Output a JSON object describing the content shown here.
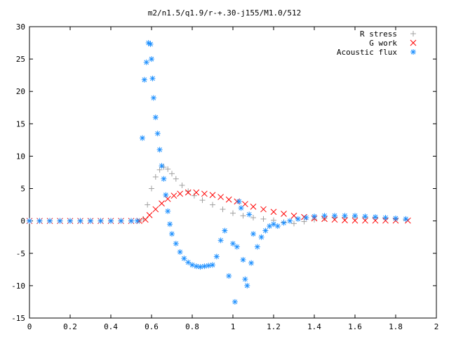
{
  "chart_data": {
    "type": "scatter",
    "title": "m2/n1.5/q1.9/r-+.30-j155/M1.0/512",
    "xlabel": "",
    "ylabel": "",
    "xlim": [
      0,
      2
    ],
    "ylim": [
      -15,
      30
    ],
    "xticks": [
      "0",
      "0.2",
      "0.4",
      "0.6",
      "0.8",
      "1",
      "1.2",
      "1.4",
      "1.6",
      "1.8",
      "2"
    ],
    "yticks": [
      "-15",
      "-10",
      "-5",
      "0",
      "5",
      "10",
      "15",
      "20",
      "25",
      "30"
    ],
    "legend_position": "top-right",
    "series": [
      {
        "name": "R stress",
        "marker": "+",
        "color": "#a0a0a0",
        "points": [
          [
            0.0,
            0
          ],
          [
            0.05,
            0
          ],
          [
            0.1,
            0
          ],
          [
            0.15,
            0
          ],
          [
            0.2,
            0
          ],
          [
            0.25,
            0
          ],
          [
            0.3,
            0
          ],
          [
            0.35,
            0
          ],
          [
            0.4,
            0
          ],
          [
            0.45,
            0
          ],
          [
            0.5,
            0
          ],
          [
            0.54,
            0
          ],
          [
            0.56,
            0.3
          ],
          [
            0.58,
            2.5
          ],
          [
            0.6,
            5.0
          ],
          [
            0.62,
            6.8
          ],
          [
            0.64,
            7.9
          ],
          [
            0.66,
            8.3
          ],
          [
            0.68,
            8.0
          ],
          [
            0.7,
            7.3
          ],
          [
            0.72,
            6.5
          ],
          [
            0.75,
            5.5
          ],
          [
            0.78,
            4.6
          ],
          [
            0.81,
            3.9
          ],
          [
            0.85,
            3.2
          ],
          [
            0.9,
            2.5
          ],
          [
            0.95,
            1.8
          ],
          [
            1.0,
            1.2
          ],
          [
            1.05,
            0.8
          ],
          [
            1.1,
            0.5
          ],
          [
            1.15,
            0.3
          ],
          [
            1.2,
            0.1
          ],
          [
            1.25,
            -0.2
          ],
          [
            1.3,
            -0.4
          ],
          [
            1.35,
            -0.1
          ],
          [
            1.4,
            0.2
          ],
          [
            1.45,
            0.4
          ],
          [
            1.5,
            0.5
          ],
          [
            1.55,
            0.55
          ],
          [
            1.6,
            0.6
          ],
          [
            1.65,
            0.55
          ],
          [
            1.7,
            0.5
          ],
          [
            1.75,
            0.4
          ],
          [
            1.8,
            0.3
          ],
          [
            1.85,
            0.15
          ]
        ]
      },
      {
        "name": "G work",
        "marker": "x",
        "color": "#ff0000",
        "points": [
          [
            0.0,
            0
          ],
          [
            0.05,
            0
          ],
          [
            0.1,
            0
          ],
          [
            0.15,
            0
          ],
          [
            0.2,
            0
          ],
          [
            0.25,
            0
          ],
          [
            0.3,
            0
          ],
          [
            0.35,
            0
          ],
          [
            0.4,
            0
          ],
          [
            0.45,
            0
          ],
          [
            0.5,
            0
          ],
          [
            0.54,
            0
          ],
          [
            0.57,
            0.2
          ],
          [
            0.59,
            0.9
          ],
          [
            0.62,
            1.8
          ],
          [
            0.65,
            2.7
          ],
          [
            0.68,
            3.4
          ],
          [
            0.71,
            3.9
          ],
          [
            0.74,
            4.2
          ],
          [
            0.78,
            4.4
          ],
          [
            0.82,
            4.4
          ],
          [
            0.86,
            4.2
          ],
          [
            0.9,
            4.0
          ],
          [
            0.94,
            3.7
          ],
          [
            0.98,
            3.3
          ],
          [
            1.02,
            3.0
          ],
          [
            1.06,
            2.6
          ],
          [
            1.1,
            2.2
          ],
          [
            1.15,
            1.8
          ],
          [
            1.2,
            1.4
          ],
          [
            1.25,
            1.1
          ],
          [
            1.3,
            0.8
          ],
          [
            1.35,
            0.6
          ],
          [
            1.4,
            0.4
          ],
          [
            1.45,
            0.3
          ],
          [
            1.5,
            0.2
          ],
          [
            1.55,
            0.1
          ],
          [
            1.6,
            0.05
          ],
          [
            1.65,
            0.05
          ],
          [
            1.7,
            0.05
          ],
          [
            1.75,
            0.05
          ],
          [
            1.8,
            0.05
          ],
          [
            1.86,
            0.05
          ]
        ]
      },
      {
        "name": "Acoustic flux",
        "marker": "*",
        "color": "#1e90ff",
        "points": [
          [
            0.0,
            0
          ],
          [
            0.05,
            0
          ],
          [
            0.1,
            0
          ],
          [
            0.15,
            0
          ],
          [
            0.2,
            0
          ],
          [
            0.25,
            0
          ],
          [
            0.3,
            0
          ],
          [
            0.35,
            0
          ],
          [
            0.4,
            0
          ],
          [
            0.45,
            0
          ],
          [
            0.5,
            0
          ],
          [
            0.53,
            0
          ],
          [
            0.555,
            12.8
          ],
          [
            0.565,
            21.8
          ],
          [
            0.575,
            24.5
          ],
          [
            0.585,
            27.5
          ],
          [
            0.595,
            27.3
          ],
          [
            0.6,
            25.0
          ],
          [
            0.605,
            22.0
          ],
          [
            0.61,
            19.0
          ],
          [
            0.62,
            16.0
          ],
          [
            0.63,
            13.5
          ],
          [
            0.64,
            11.0
          ],
          [
            0.65,
            8.5
          ],
          [
            0.66,
            6.5
          ],
          [
            0.67,
            4.0
          ],
          [
            0.68,
            1.5
          ],
          [
            0.69,
            -0.5
          ],
          [
            0.7,
            -2.0
          ],
          [
            0.72,
            -3.5
          ],
          [
            0.74,
            -4.8
          ],
          [
            0.76,
            -5.8
          ],
          [
            0.78,
            -6.4
          ],
          [
            0.8,
            -6.8
          ],
          [
            0.82,
            -7.0
          ],
          [
            0.84,
            -7.1
          ],
          [
            0.86,
            -7.0
          ],
          [
            0.88,
            -6.9
          ],
          [
            0.9,
            -6.8
          ],
          [
            0.92,
            -5.5
          ],
          [
            0.94,
            -3.0
          ],
          [
            0.96,
            -1.5
          ],
          [
            0.98,
            -8.5
          ],
          [
            1.0,
            -3.5
          ],
          [
            1.01,
            -12.5
          ],
          [
            1.02,
            -4.0
          ],
          [
            1.03,
            3.0
          ],
          [
            1.04,
            2.0
          ],
          [
            1.05,
            -6.0
          ],
          [
            1.06,
            -9.0
          ],
          [
            1.07,
            -10.0
          ],
          [
            1.08,
            1.0
          ],
          [
            1.09,
            -6.5
          ],
          [
            1.1,
            -2.0
          ],
          [
            1.12,
            -4.0
          ],
          [
            1.14,
            -2.5
          ],
          [
            1.16,
            -1.5
          ],
          [
            1.18,
            -0.8
          ],
          [
            1.2,
            -0.5
          ],
          [
            1.22,
            -0.8
          ],
          [
            1.25,
            -0.3
          ],
          [
            1.28,
            0
          ],
          [
            1.32,
            0.3
          ],
          [
            1.36,
            0.5
          ],
          [
            1.4,
            0.7
          ],
          [
            1.45,
            0.8
          ],
          [
            1.5,
            0.8
          ],
          [
            1.55,
            0.8
          ],
          [
            1.6,
            0.8
          ],
          [
            1.65,
            0.7
          ],
          [
            1.7,
            0.6
          ],
          [
            1.75,
            0.5
          ],
          [
            1.8,
            0.4
          ],
          [
            1.85,
            0.3
          ]
        ]
      }
    ]
  }
}
